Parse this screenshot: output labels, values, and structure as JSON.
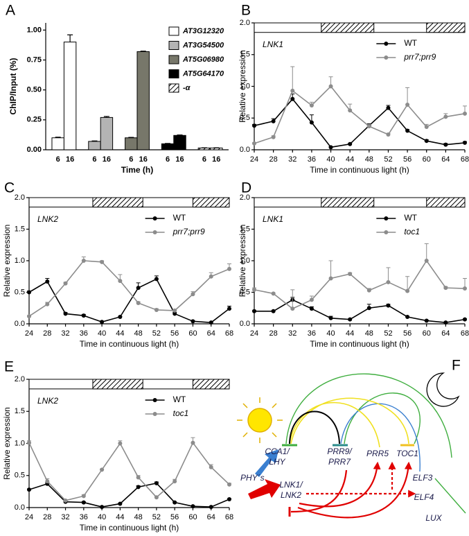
{
  "chart_data": [
    {
      "panel": "A",
      "type": "bar",
      "y_label": "ChIP/Input (%)",
      "x_label": "Time (h)",
      "categories": [
        "6",
        "16"
      ],
      "series": [
        {
          "name": "AT3G12320",
          "color": "#ffffff",
          "values": [
            0.1,
            0.9
          ],
          "errors": [
            0.005,
            0.06
          ]
        },
        {
          "name": "AT3G54500",
          "color": "#b4b4b4",
          "values": [
            0.07,
            0.27
          ],
          "errors": [
            0.004,
            0.008
          ]
        },
        {
          "name": "AT5G06980",
          "color": "#77776a",
          "values": [
            0.1,
            0.82
          ],
          "errors": [
            0.004,
            0.004
          ]
        },
        {
          "name": "AT5G64170",
          "color": "#000000",
          "values": [
            0.05,
            0.12
          ],
          "errors": [
            0.003,
            0.004
          ]
        },
        {
          "name": "-α",
          "color": "#ffffff",
          "hatch": true,
          "values": [
            0.015,
            0.015
          ],
          "errors": [
            0.002,
            0.002
          ]
        }
      ],
      "ylim": [
        0,
        1.06
      ],
      "yticks": [
        {
          "value": 0,
          "label": "0.00"
        },
        {
          "value": 0.25,
          "label": "0.25"
        },
        {
          "value": 0.5,
          "label": "0.50"
        },
        {
          "value": 0.75,
          "label": "0.75"
        },
        {
          "value": 1,
          "label": "1.00"
        }
      ],
      "legend": "upper-right"
    },
    {
      "panel": "B",
      "type": "line",
      "gene": "LNK1",
      "y_label": "Relative expression",
      "x_label": "Time in continuous light (h)",
      "x": [
        24,
        28,
        32,
        36,
        40,
        44,
        48,
        52,
        56,
        60,
        64,
        68
      ],
      "series": [
        {
          "name": "WT",
          "color": "#000000",
          "values": [
            0.38,
            0.45,
            0.8,
            0.43,
            0.04,
            0.09,
            0.38,
            0.66,
            0.3,
            0.14,
            0.08,
            0.11
          ],
          "errors": [
            0.02,
            0.04,
            0.08,
            0.12,
            0.01,
            0.01,
            0.03,
            0.04,
            0.02,
            0.02,
            0.02,
            0.02
          ]
        },
        {
          "name": "prr7;prr9",
          "color": "#8c8c8c",
          "values": [
            0.1,
            0.2,
            0.93,
            0.7,
            1.0,
            0.62,
            0.37,
            0.24,
            0.71,
            0.36,
            0.52,
            0.57
          ],
          "errors": [
            0.01,
            0.02,
            0.38,
            0.05,
            0.15,
            0.1,
            0.03,
            0.02,
            0.27,
            0.04,
            0.05,
            0.12
          ]
        }
      ],
      "xlim": [
        24,
        68
      ],
      "xticks": [
        24,
        28,
        32,
        36,
        40,
        44,
        48,
        52,
        56,
        60,
        64,
        68
      ],
      "ylim": [
        0,
        2
      ],
      "yticks": [
        {
          "value": 0,
          "label": "0.0"
        },
        {
          "value": 0.5,
          "label": "0.5"
        },
        {
          "value": 1,
          "label": "1.0"
        },
        {
          "value": 1.5,
          "label": "1.5"
        },
        {
          "value": 2,
          "label": "2.0"
        }
      ],
      "daynight_band": [
        1.85,
        2
      ],
      "night_intervals": [
        [
          38,
          49
        ],
        [
          60,
          68
        ]
      ],
      "legend": "upper-right"
    },
    {
      "panel": "C",
      "type": "line",
      "gene": "LNK2",
      "y_label": "Relative expression",
      "x_label": "Time in continuous light (h)",
      "x": [
        24,
        28,
        32,
        36,
        40,
        44,
        48,
        52,
        56,
        60,
        64,
        68
      ],
      "series": [
        {
          "name": "WT",
          "color": "#000000",
          "values": [
            0.5,
            0.67,
            0.16,
            0.13,
            0.03,
            0.11,
            0.57,
            0.71,
            0.16,
            0.04,
            0.02,
            0.24
          ],
          "errors": [
            0.02,
            0.05,
            0.02,
            0.02,
            0.01,
            0.01,
            0.08,
            0.05,
            0.02,
            0.01,
            0.01,
            0.04
          ]
        },
        {
          "name": "prr7;prr9",
          "color": "#8c8c8c",
          "values": [
            0.12,
            0.31,
            0.64,
            1.0,
            0.98,
            0.68,
            0.33,
            0.22,
            0.21,
            0.47,
            0.75,
            0.87
          ],
          "errors": [
            0.01,
            0.03,
            0.02,
            0.06,
            0.02,
            0.1,
            0.02,
            0.02,
            0.02,
            0.04,
            0.06,
            0.08
          ]
        }
      ],
      "xlim": [
        24,
        68
      ],
      "xticks": [
        24,
        28,
        32,
        36,
        40,
        44,
        48,
        52,
        56,
        60,
        64,
        68
      ],
      "ylim": [
        0,
        2
      ],
      "yticks": [
        {
          "value": 0,
          "label": "0.0"
        },
        {
          "value": 0.5,
          "label": "0.5"
        },
        {
          "value": 1,
          "label": "1.0"
        },
        {
          "value": 1.5,
          "label": "1.5"
        },
        {
          "value": 2,
          "label": "2.0"
        }
      ],
      "daynight_band": [
        1.85,
        2
      ],
      "night_intervals": [
        [
          38,
          49
        ],
        [
          60,
          68
        ]
      ],
      "legend": "upper-right"
    },
    {
      "panel": "D",
      "type": "line",
      "gene": "LNK1",
      "y_label": "Relative expression",
      "x_label": "Time in continuous light (h)",
      "x": [
        24,
        28,
        32,
        36,
        40,
        44,
        48,
        52,
        56,
        60,
        64,
        68
      ],
      "series": [
        {
          "name": "WT",
          "color": "#000000",
          "values": [
            0.2,
            0.2,
            0.38,
            0.24,
            0.09,
            0.07,
            0.25,
            0.29,
            0.11,
            0.05,
            0.02,
            0.07
          ],
          "errors": [
            0.01,
            0.01,
            0.04,
            0.03,
            0.03,
            0.01,
            0.06,
            0.02,
            0.01,
            0.01,
            0.01,
            0.01
          ]
        },
        {
          "name": "toc1",
          "color": "#8c8c8c",
          "values": [
            0.54,
            0.48,
            0.24,
            0.38,
            0.72,
            0.79,
            0.53,
            0.66,
            0.52,
            1.0,
            0.57,
            0.56
          ],
          "errors": [
            0.03,
            0.01,
            0.3,
            0.06,
            0.28,
            0.02,
            0.03,
            0.23,
            0.23,
            0.27,
            0.02,
            0.16
          ]
        }
      ],
      "xlim": [
        24,
        68
      ],
      "xticks": [
        24,
        28,
        32,
        36,
        40,
        44,
        48,
        52,
        56,
        60,
        64,
        68
      ],
      "ylim": [
        0,
        2
      ],
      "yticks": [
        {
          "value": 0,
          "label": "0.0"
        },
        {
          "value": 0.5,
          "label": "0.5"
        },
        {
          "value": 1,
          "label": "1.0"
        },
        {
          "value": 1.5,
          "label": "1.5"
        },
        {
          "value": 2,
          "label": "2.0"
        }
      ],
      "daynight_band": [
        1.85,
        2
      ],
      "night_intervals": [
        [
          38,
          49
        ],
        [
          60,
          68
        ]
      ],
      "legend": "upper-right"
    },
    {
      "panel": "E",
      "type": "line",
      "gene": "LNK2",
      "y_label": "Relative expression",
      "x_label": "Time in continuous light (h)",
      "x": [
        24,
        28,
        32,
        36,
        40,
        44,
        48,
        52,
        56,
        60,
        64,
        68
      ],
      "series": [
        {
          "name": "WT",
          "color": "#000000",
          "values": [
            0.28,
            0.37,
            0.09,
            0.08,
            0.01,
            0.06,
            0.32,
            0.38,
            0.08,
            0.02,
            0.01,
            0.13
          ],
          "errors": [
            0.01,
            0.02,
            0.01,
            0.01,
            0.01,
            0.01,
            0.02,
            0.02,
            0.01,
            0.01,
            0.01,
            0.01
          ]
        },
        {
          "name": "toc1",
          "color": "#8c8c8c",
          "values": [
            1.01,
            0.41,
            0.11,
            0.18,
            0.59,
            1.0,
            0.47,
            0.16,
            0.41,
            1.01,
            0.63,
            0.36
          ],
          "errors": [
            0.03,
            0.04,
            0.01,
            0.02,
            0.01,
            0.04,
            0.03,
            0.02,
            0.03,
            0.08,
            0.04,
            0.02
          ]
        }
      ],
      "xlim": [
        24,
        68
      ],
      "xticks": [
        24,
        28,
        32,
        36,
        40,
        44,
        48,
        52,
        56,
        60,
        64,
        68
      ],
      "ylim": [
        0,
        2
      ],
      "yticks": [
        {
          "value": 0,
          "label": "0.0"
        },
        {
          "value": 0.5,
          "label": "0.5"
        },
        {
          "value": 1,
          "label": "1.0"
        },
        {
          "value": 1.5,
          "label": "1.5"
        },
        {
          "value": 2,
          "label": "2.0"
        }
      ],
      "daynight_band": [
        1.85,
        2
      ],
      "night_intervals": [
        [
          38,
          49
        ],
        [
          60,
          68
        ]
      ],
      "legend": "upper-right"
    }
  ],
  "diagram": {
    "panel": "F",
    "nodes": [
      {
        "lines": [
          "CCA1/",
          "LHY"
        ]
      },
      {
        "lines": [
          "PRR9/",
          "PRR7"
        ]
      },
      {
        "lines": [
          "PRR5"
        ]
      },
      {
        "lines": [
          "TOC1"
        ]
      },
      {
        "lines": [
          "PHY´s"
        ]
      },
      {
        "lines": [
          "LNK1/",
          "LNK2"
        ]
      },
      {
        "lines": [
          "ELF3"
        ]
      },
      {
        "lines": [
          "ELF4"
        ]
      },
      {
        "lines": [
          "LUX"
        ]
      }
    ]
  }
}
